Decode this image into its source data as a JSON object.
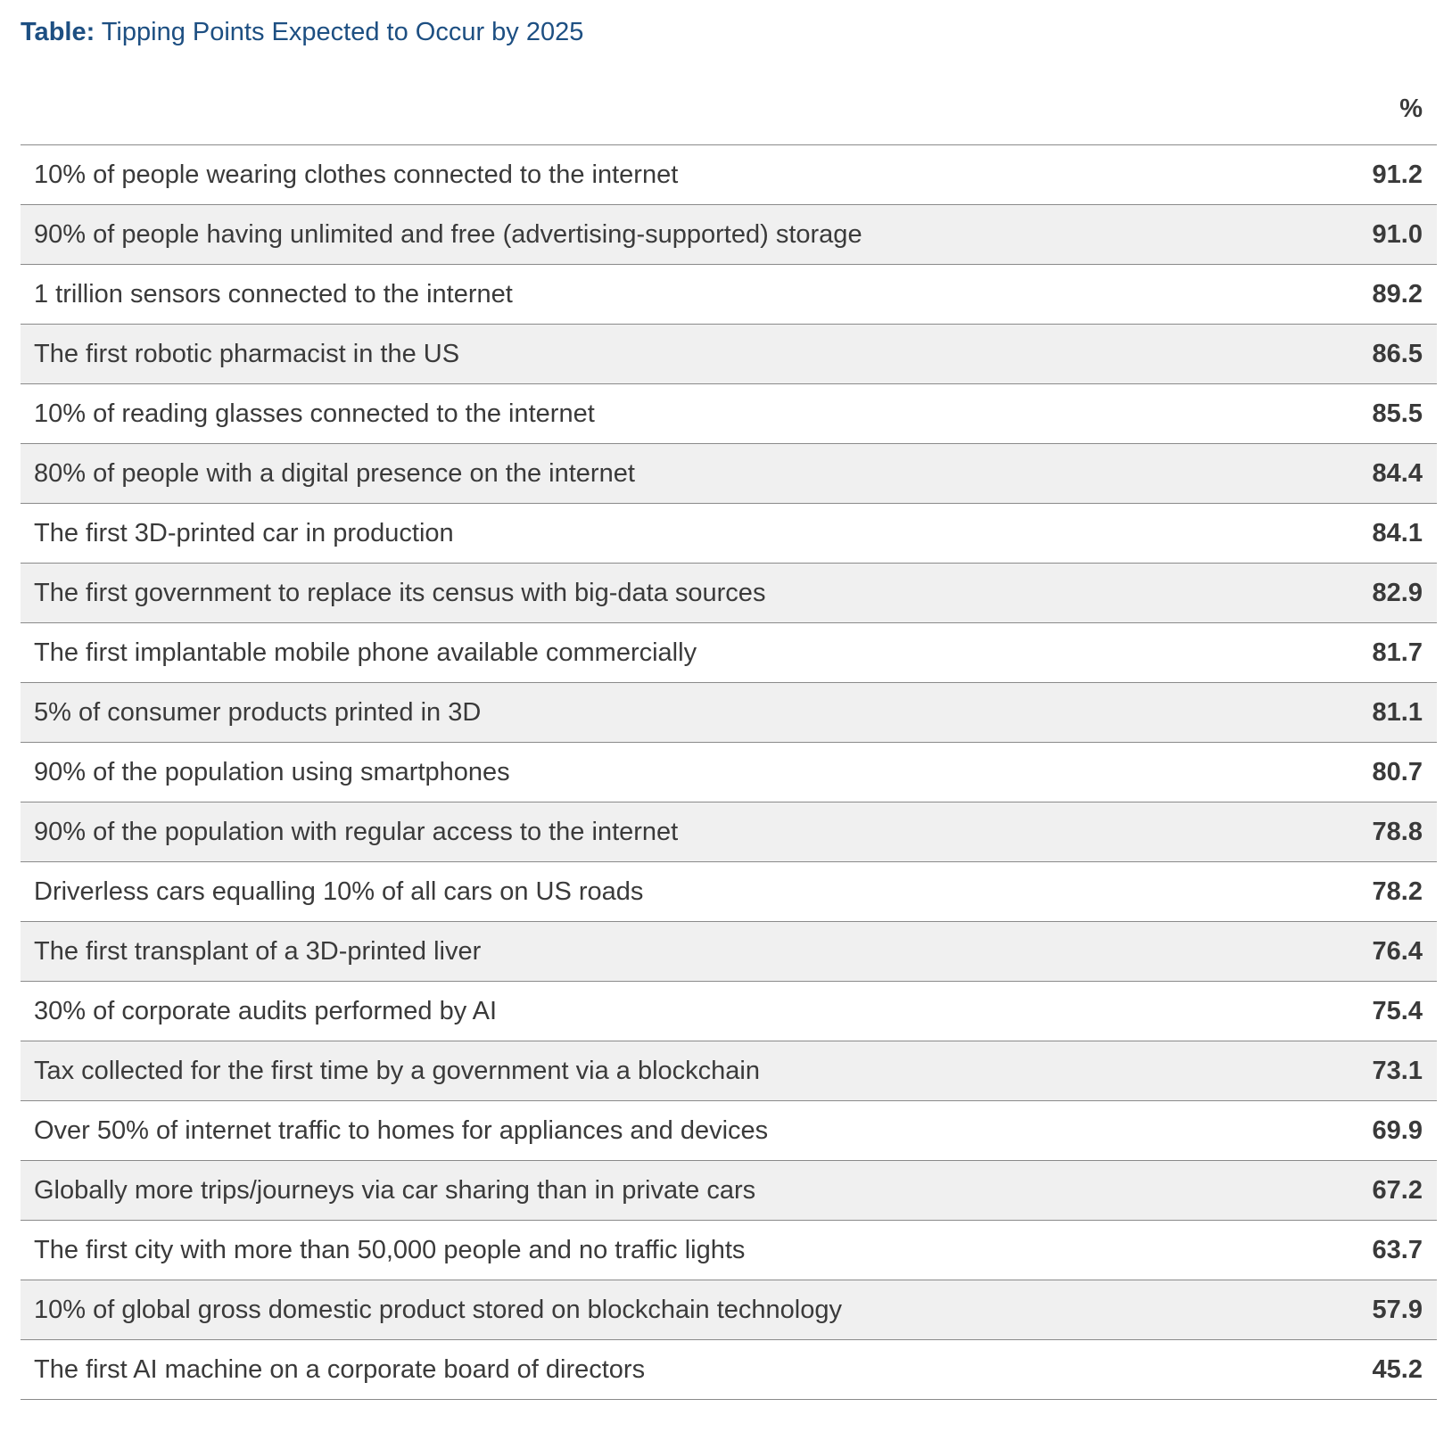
{
  "title": {
    "prefix": "Table:",
    "text": "Tipping Points Expected to Occur by 2025"
  },
  "table": {
    "value_header": "%",
    "rows": [
      {
        "label": "10% of people wearing clothes connected to the internet",
        "value": "91.2"
      },
      {
        "label": "90% of people having unlimited and free (advertising-supported) storage",
        "value": "91.0"
      },
      {
        "label": "1 trillion sensors connected to the internet",
        "value": "89.2"
      },
      {
        "label": "The first robotic pharmacist in the US",
        "value": "86.5"
      },
      {
        "label": "10% of reading glasses connected to the internet",
        "value": "85.5"
      },
      {
        "label": "80% of people with a digital presence on the internet",
        "value": "84.4"
      },
      {
        "label": "The first 3D-printed car in production",
        "value": "84.1"
      },
      {
        "label": "The first government to replace its census with big-data sources",
        "value": "82.9"
      },
      {
        "label": "The first implantable mobile phone available commercially",
        "value": "81.7"
      },
      {
        "label": "5% of consumer products printed in 3D",
        "value": "81.1"
      },
      {
        "label": "90% of the population using smartphones",
        "value": "80.7"
      },
      {
        "label": "90% of the population with regular access to the internet",
        "value": "78.8"
      },
      {
        "label": "Driverless cars equalling 10% of all cars on US roads",
        "value": "78.2"
      },
      {
        "label": "The first transplant of a 3D-printed liver",
        "value": "76.4"
      },
      {
        "label": "30% of corporate audits performed by AI",
        "value": "75.4"
      },
      {
        "label": "Tax collected for the first time by a government via a blockchain",
        "value": "73.1"
      },
      {
        "label": "Over 50% of internet traffic to homes for appliances and devices",
        "value": "69.9"
      },
      {
        "label": "Globally more trips/journeys via car sharing than in private cars",
        "value": "67.2"
      },
      {
        "label": "The first city with more than 50,000 people and no traffic lights",
        "value": "63.7"
      },
      {
        "label": "10% of global gross domestic product stored on blockchain technology",
        "value": "57.9"
      },
      {
        "label": "The first AI machine on a corporate board of directors",
        "value": "45.2"
      }
    ]
  },
  "colors": {
    "title": "#1d4f82",
    "text": "#3a3a3a",
    "row_alt_background": "#f0f0f0",
    "rule": "#8a8a8a"
  }
}
